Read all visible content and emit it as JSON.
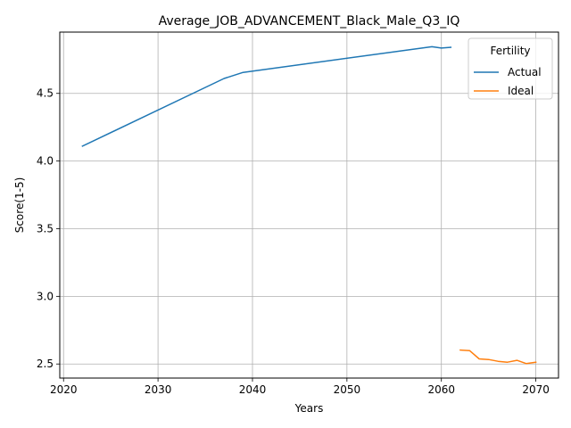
{
  "chart_data": {
    "type": "line",
    "title": "Average_JOB_ADVANCEMENT_Black_Male_Q3_IQ",
    "xlabel": "Years",
    "ylabel": "Score(1-5)",
    "xlim": [
      2019.6,
      2072.4
    ],
    "ylim": [
      2.396,
      4.953
    ],
    "xticks": [
      2020,
      2030,
      2040,
      2050,
      2060,
      2070
    ],
    "yticks": [
      2.5,
      3.0,
      3.5,
      4.0,
      4.5
    ],
    "ytick_labels": [
      "2.5",
      "3.0",
      "3.5",
      "4.0",
      "4.5"
    ],
    "grid": true,
    "legend": {
      "title": "Fertility",
      "placement": "top-right"
    },
    "series": [
      {
        "name": "Actual",
        "color": "#1f77b4",
        "x": [
          2022,
          2037,
          2039,
          2059,
          2060,
          2061
        ],
        "y": [
          4.11,
          4.61,
          4.655,
          4.845,
          4.835,
          4.84
        ]
      },
      {
        "name": "Ideal",
        "color": "#ff7f0e",
        "x": [
          2062,
          2063,
          2064,
          2065,
          2066,
          2067,
          2068,
          2069,
          2070
        ],
        "y": [
          2.603,
          2.598,
          2.538,
          2.533,
          2.52,
          2.513,
          2.527,
          2.503,
          2.513
        ]
      }
    ]
  }
}
